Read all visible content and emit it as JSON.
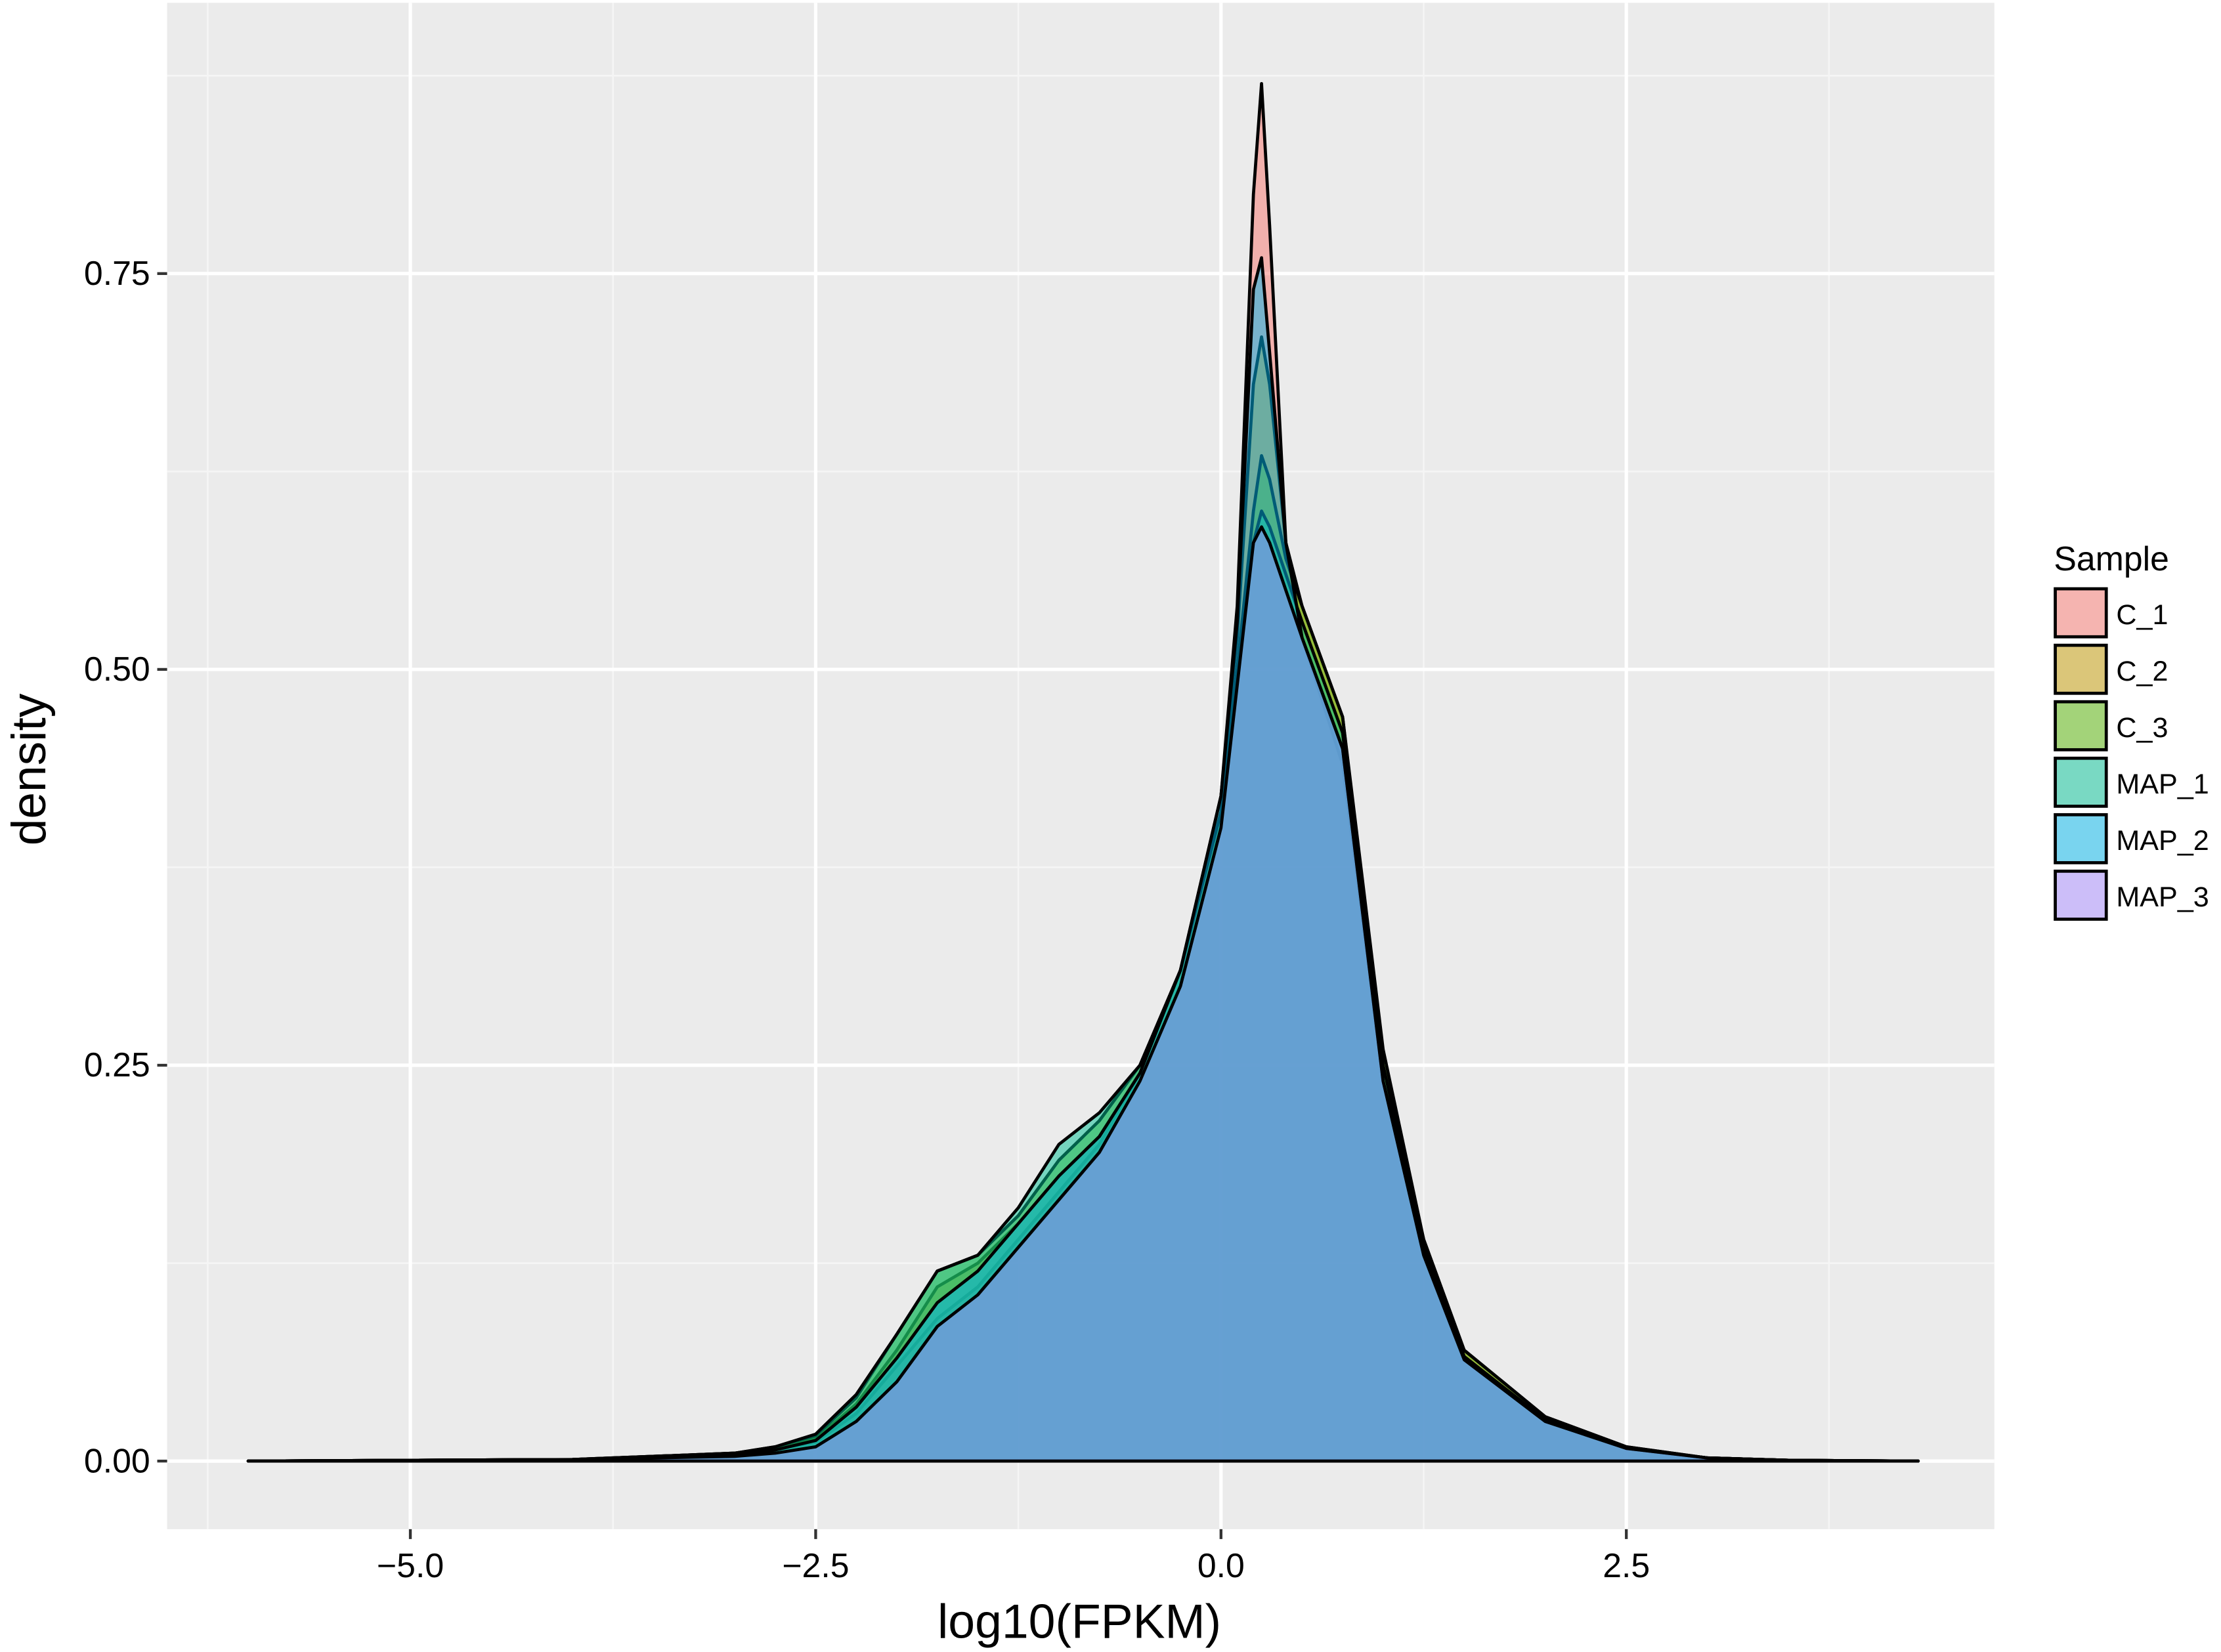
{
  "chart_data": {
    "type": "density",
    "x_label": "log10(FPKM)",
    "y_label": "density",
    "legend_title": "Sample",
    "legend": "right",
    "grid": true,
    "xlim": [
      -6.5,
      4.77
    ],
    "ylim": [
      -0.043,
      0.921
    ],
    "xticks": [
      {
        "value": -5,
        "label": "−5.0"
      },
      {
        "value": -2.5,
        "label": "−2.5"
      },
      {
        "value": 0,
        "label": "0.0"
      },
      {
        "value": 2.5,
        "label": "2.5"
      }
    ],
    "yticks": [
      {
        "value": 0,
        "label": "0.00"
      },
      {
        "value": 0.25,
        "label": "0.25"
      },
      {
        "value": 0.5,
        "label": "0.50"
      },
      {
        "value": 0.75,
        "label": "0.75"
      }
    ],
    "x_minor_grid": [
      -6.25,
      -3.75,
      -1.25,
      1.25,
      3.75
    ],
    "y_minor_grid": [
      0.125,
      0.375,
      0.625,
      0.875
    ],
    "x": [
      -6,
      -4,
      -3,
      -2.75,
      -2.5,
      -2.25,
      -2,
      -1.75,
      -1.5,
      -1.25,
      -1,
      -0.75,
      -0.5,
      -0.25,
      0,
      0.1,
      0.2,
      0.25,
      0.3,
      0.4,
      0.5,
      0.75,
      1,
      1.25,
      1.5,
      2,
      2.5,
      3,
      3.5,
      4.3
    ],
    "series": [
      {
        "name": "C_1",
        "color": "#F8766D",
        "values": [
          0,
          0.001,
          0.004,
          0.007,
          0.012,
          0.03,
          0.06,
          0.09,
          0.11,
          0.14,
          0.17,
          0.2,
          0.245,
          0.31,
          0.42,
          0.54,
          0.8,
          0.87,
          0.78,
          0.58,
          0.52,
          0.44,
          0.24,
          0.13,
          0.065,
          0.026,
          0.008,
          0.002,
          0.0005,
          0
        ]
      },
      {
        "name": "C_2",
        "color": "#C49A00",
        "values": [
          0,
          0.001,
          0.005,
          0.008,
          0.014,
          0.036,
          0.07,
          0.11,
          0.125,
          0.15,
          0.18,
          0.205,
          0.245,
          0.31,
          0.42,
          0.52,
          0.68,
          0.71,
          0.68,
          0.58,
          0.54,
          0.47,
          0.25,
          0.14,
          0.07,
          0.028,
          0.009,
          0.002,
          0.0005,
          0
        ]
      },
      {
        "name": "C_3",
        "color": "#53B400",
        "values": [
          0,
          0.001,
          0.005,
          0.009,
          0.016,
          0.04,
          0.08,
          0.12,
          0.13,
          0.155,
          0.19,
          0.215,
          0.25,
          0.31,
          0.41,
          0.5,
          0.6,
          0.635,
          0.62,
          0.57,
          0.54,
          0.47,
          0.26,
          0.14,
          0.07,
          0.028,
          0.009,
          0.002,
          0.0005,
          0
        ]
      },
      {
        "name": "MAP_1",
        "color": "#00C094",
        "values": [
          0,
          0.001,
          0.005,
          0.009,
          0.017,
          0.042,
          0.08,
          0.12,
          0.13,
          0.16,
          0.2,
          0.22,
          0.25,
          0.31,
          0.41,
          0.5,
          0.58,
          0.6,
          0.59,
          0.56,
          0.53,
          0.46,
          0.25,
          0.135,
          0.066,
          0.026,
          0.008,
          0.002,
          0.0005,
          0
        ]
      },
      {
        "name": "MAP_2",
        "color": "#00B6EB",
        "values": [
          0,
          0.001,
          0.004,
          0.007,
          0.013,
          0.034,
          0.065,
          0.1,
          0.12,
          0.15,
          0.18,
          0.205,
          0.245,
          0.31,
          0.42,
          0.53,
          0.74,
          0.76,
          0.7,
          0.58,
          0.52,
          0.45,
          0.24,
          0.135,
          0.066,
          0.026,
          0.008,
          0.002,
          0.0005,
          0
        ]
      },
      {
        "name": "MAP_3",
        "color": "#A58AFF",
        "values": [
          0,
          0.001,
          0.003,
          0.005,
          0.009,
          0.025,
          0.05,
          0.085,
          0.105,
          0.135,
          0.165,
          0.195,
          0.24,
          0.3,
          0.4,
          0.49,
          0.58,
          0.59,
          0.58,
          0.55,
          0.52,
          0.45,
          0.24,
          0.13,
          0.064,
          0.025,
          0.008,
          0.002,
          0.0005,
          0
        ]
      }
    ]
  }
}
